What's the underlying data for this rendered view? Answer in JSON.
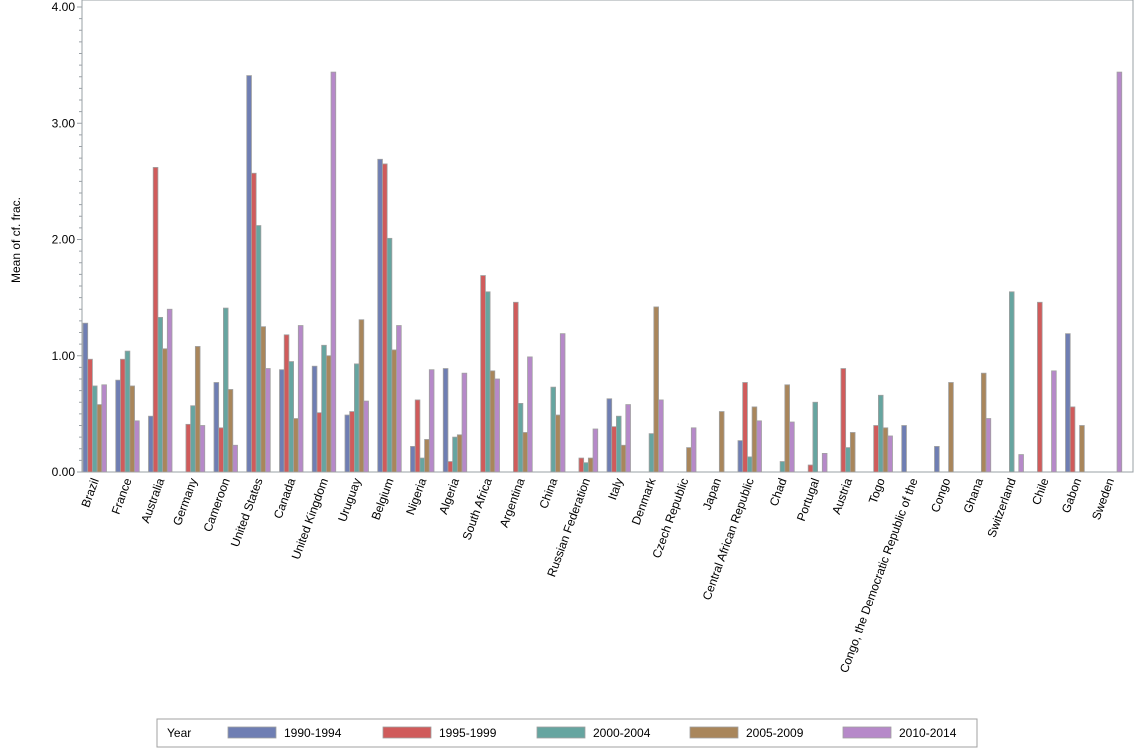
{
  "chart_data": {
    "type": "bar",
    "title": "",
    "xlabel": "",
    "ylabel": "Mean of cf. frac.",
    "ylim": [
      0,
      4
    ],
    "yticks": [
      "0.00",
      "1.00",
      "2.00",
      "3.00",
      "4.00"
    ],
    "grid": false,
    "legend_title": "Year",
    "legend_position": "bottom",
    "categories": [
      "Brazil",
      "France",
      "Australia",
      "Germany",
      "Cameroon",
      "United States",
      "Canada",
      "United Kingdom",
      "Uruguay",
      "Belgium",
      "Nigeria",
      "Algeria",
      "South Africa",
      "Argentina",
      "China",
      "Russian Federation",
      "Italy",
      "Denmark",
      "Czech Republic",
      "Japan",
      "Central African Republic",
      "Chad",
      "Portugal",
      "Austria",
      "Togo",
      "Congo, the Democratic Republic of the",
      "Congo",
      "Ghana",
      "Switzerland",
      "Chile",
      "Gabon",
      "Sweden"
    ],
    "series": [
      {
        "name": "1990-1994",
        "color": "#6f7eb3",
        "values": [
          1.28,
          0.79,
          0.48,
          null,
          0.77,
          3.41,
          0.88,
          0.91,
          0.49,
          2.69,
          0.22,
          0.89,
          null,
          null,
          null,
          null,
          0.63,
          null,
          null,
          null,
          0.27,
          null,
          null,
          null,
          null,
          0.4,
          0.22,
          null,
          null,
          null,
          1.19,
          null
        ]
      },
      {
        "name": "1995-1999",
        "color": "#d05b5b",
        "values": [
          0.97,
          0.97,
          2.62,
          0.41,
          0.38,
          2.57,
          1.18,
          0.51,
          0.52,
          2.65,
          0.62,
          0.09,
          1.69,
          1.46,
          null,
          0.12,
          0.39,
          null,
          null,
          null,
          0.77,
          null,
          0.06,
          0.89,
          0.4,
          null,
          null,
          null,
          null,
          1.46,
          0.56,
          null
        ]
      },
      {
        "name": "2000-2004",
        "color": "#66a5a0",
        "values": [
          0.74,
          1.04,
          1.33,
          0.57,
          1.41,
          2.12,
          0.95,
          1.09,
          0.93,
          2.01,
          0.12,
          0.3,
          1.55,
          0.59,
          0.73,
          0.08,
          0.48,
          0.33,
          null,
          null,
          0.13,
          0.09,
          0.6,
          0.21,
          0.66,
          null,
          null,
          null,
          1.55,
          null,
          null,
          null
        ]
      },
      {
        "name": "2005-2009",
        "color": "#a9865b",
        "values": [
          0.58,
          0.74,
          1.06,
          1.08,
          0.71,
          1.25,
          0.46,
          1.0,
          1.31,
          1.05,
          0.28,
          0.32,
          0.87,
          0.34,
          0.49,
          0.12,
          0.23,
          1.42,
          0.21,
          0.52,
          0.56,
          0.75,
          null,
          0.34,
          0.38,
          null,
          0.77,
          0.85,
          null,
          null,
          0.4,
          null
        ]
      },
      {
        "name": "2010-2014",
        "color": "#b689c9",
        "values": [
          0.75,
          0.44,
          1.4,
          0.4,
          0.23,
          0.89,
          1.26,
          3.44,
          0.61,
          1.26,
          0.88,
          0.85,
          0.8,
          0.99,
          1.19,
          0.37,
          0.58,
          0.62,
          0.38,
          null,
          0.44,
          0.43,
          0.16,
          null,
          0.31,
          null,
          null,
          0.46,
          0.15,
          0.87,
          null,
          3.44
        ]
      }
    ]
  }
}
